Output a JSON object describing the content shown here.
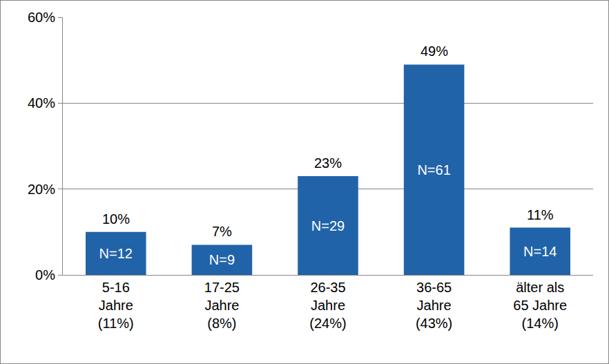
{
  "chart_data": {
    "type": "bar",
    "categories": [
      "5-16\nJahre\n(11%)",
      "17-25\nJahre\n(8%)",
      "26-35\nJahre\n(24%)",
      "36-65\nJahre\n(43%)",
      "älter als\n65 Jahre\n(14%)"
    ],
    "values": [
      10,
      7,
      23,
      49,
      11
    ],
    "value_labels": [
      "10%",
      "7%",
      "23%",
      "49%",
      "11%"
    ],
    "n": [
      12,
      9,
      29,
      61,
      14
    ],
    "n_labels": [
      "N=12",
      "N=9",
      "N=29",
      "N=61",
      "N=14"
    ],
    "color": "#2163a8",
    "ylim": [
      0,
      60
    ],
    "yticks": [
      {
        "value": 0,
        "label": "0%"
      },
      {
        "value": 20,
        "label": "20%"
      },
      {
        "value": 40,
        "label": "40%"
      },
      {
        "value": 60,
        "label": "60%"
      }
    ],
    "grid": true,
    "data_labels": true
  }
}
